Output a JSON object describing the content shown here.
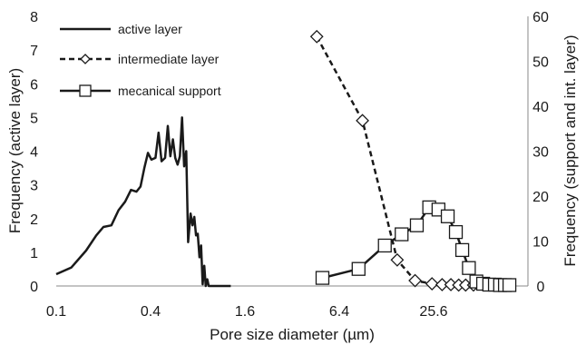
{
  "chart_data": {
    "type": "line",
    "xlabel": "Pore size diameter (µm)",
    "ylabel_left": "Frequency (active layer)",
    "ylabel_right": "Frequency (support and int. layer)",
    "x_scale": "log2",
    "xlim": [
      0.1,
      102.4
    ],
    "x_ticks": [
      "0.1",
      "0.4",
      "1.6",
      "6.4",
      "25.6"
    ],
    "x_tick_values": [
      0.1,
      0.4,
      1.6,
      6.4,
      25.6
    ],
    "ylim_left": [
      0,
      8
    ],
    "y_ticks_left": [
      "0",
      "1",
      "2",
      "3",
      "4",
      "5",
      "6",
      "7",
      "8"
    ],
    "ylim_right": [
      0,
      60
    ],
    "y_ticks_right": [
      "0",
      "10",
      "20",
      "30",
      "40",
      "50",
      "60"
    ],
    "grid": false,
    "legend_position": "top-left",
    "series": [
      {
        "name": "active layer",
        "axis": "left",
        "style": "solid",
        "marker": "none",
        "color": "#1a1a1a",
        "x": [
          0.1,
          0.125,
          0.155,
          0.18,
          0.2,
          0.225,
          0.25,
          0.275,
          0.3,
          0.325,
          0.345,
          0.365,
          0.385,
          0.405,
          0.43,
          0.45,
          0.47,
          0.495,
          0.515,
          0.535,
          0.555,
          0.575,
          0.595,
          0.615,
          0.635,
          0.655,
          0.675,
          0.695,
          0.72,
          0.74,
          0.76,
          0.78,
          0.8,
          0.82,
          0.84,
          0.86,
          0.88,
          0.9,
          0.92,
          0.94,
          0.96,
          0.98,
          1.0,
          1.04,
          1.1,
          1.15,
          1.2,
          1.26,
          1.3
        ],
        "values": [
          0.35,
          0.55,
          1.05,
          1.5,
          1.75,
          1.8,
          2.25,
          2.5,
          2.85,
          2.8,
          2.95,
          3.5,
          3.95,
          3.75,
          3.8,
          4.55,
          3.7,
          3.8,
          4.75,
          3.85,
          4.35,
          3.8,
          3.6,
          3.85,
          5.0,
          3.55,
          4.0,
          1.3,
          2.15,
          1.8,
          2.05,
          1.5,
          1.55,
          0.85,
          1.2,
          0.05,
          0.6,
          0.0,
          0.2,
          0.0,
          0.0,
          0.0,
          0.0,
          0.0,
          0.0,
          0.0,
          0.0,
          0.0,
          0.0
        ]
      },
      {
        "name": "intermediate layer",
        "axis": "right",
        "style": "dashed",
        "marker": "diamond",
        "color": "#1a1a1a",
        "x": [
          4.6,
          9.0,
          15.0,
          19.5,
          25.0,
          29.0,
          33.0,
          37.0,
          41.0,
          46.0
        ],
        "values": [
          55.5,
          36.8,
          5.8,
          1.2,
          0.5,
          0.3,
          0.3,
          0.2,
          0.2,
          0.2
        ]
      },
      {
        "name": "mecanical support",
        "axis": "right",
        "style": "solid",
        "marker": "square",
        "color": "#1a1a1a",
        "x": [
          5.0,
          8.5,
          12.5,
          16.0,
          20.0,
          24.0,
          27.5,
          31.5,
          35.5,
          39.0,
          43.0,
          48.0,
          53.0,
          58.0,
          63.0,
          68.0,
          73.0,
          78.0
        ],
        "values": [
          1.8,
          3.8,
          9.0,
          11.5,
          13.5,
          17.5,
          17.0,
          15.5,
          12.0,
          8.0,
          4.0,
          1.0,
          0.5,
          0.3,
          0.3,
          0.2,
          0.2,
          0.2
        ]
      }
    ]
  }
}
